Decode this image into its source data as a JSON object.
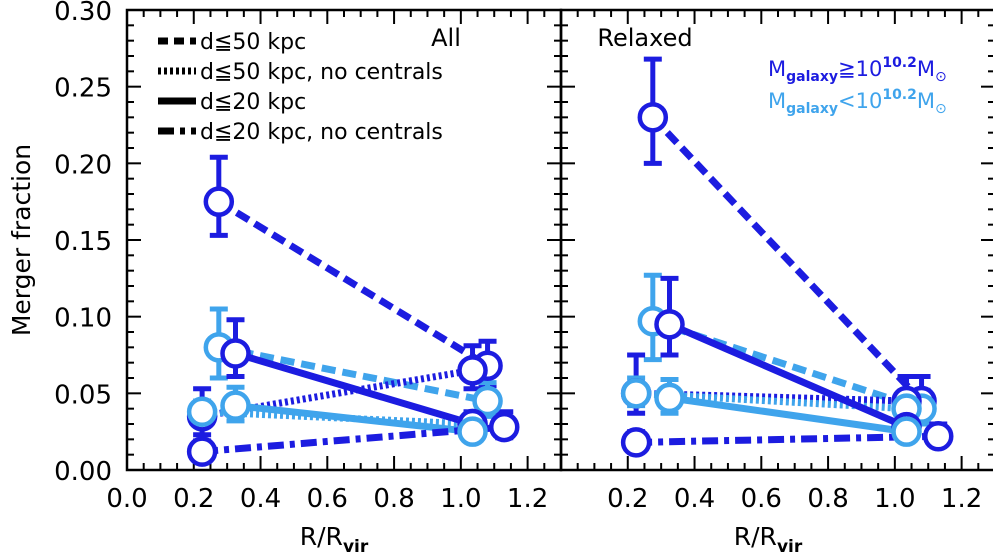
{
  "colors": {
    "dark_blue": "#1c1ce0",
    "light_blue": "#3fa4ec",
    "axis": "#000000"
  },
  "chart_data": {
    "type": "scatter",
    "ylabel": "Merger fraction",
    "yticks": [
      "0.00",
      "0.05",
      "0.10",
      "0.15",
      "0.20",
      "0.25",
      "0.30"
    ],
    "ylim": [
      0,
      0.3
    ],
    "legend": {
      "entries": [
        {
          "label": "d≦50 kpc",
          "style": "dashed"
        },
        {
          "label": "d≦50 kpc, no centrals",
          "style": "dotted"
        },
        {
          "label": "d≦20 kpc",
          "style": "solid"
        },
        {
          "label": "d≦20 kpc, no centrals",
          "style": "dashdot"
        }
      ],
      "mass_high": {
        "main": "M",
        "sub": "galaxy",
        "mid": "≧10",
        "sup": "10.2",
        "end": "M",
        "endsub": "⊙"
      },
      "mass_low": {
        "main": "M",
        "sub": "galaxy",
        "mid": "<10",
        "sup": "10.2",
        "end": "M",
        "endsub": "⊙"
      }
    },
    "panels": [
      {
        "title": "All",
        "xlabel": {
          "main": "R/R",
          "sub": "vir"
        },
        "xticks": [
          "0.0",
          "0.2",
          "0.4",
          "0.6",
          "0.8",
          "1.0",
          "1.2"
        ],
        "xlim": [
          0,
          1.3
        ],
        "series": [
          {
            "style": "dashed",
            "color": "dark_blue",
            "x": [
              0.275,
              1.08
            ],
            "y": [
              0.175,
              0.068
            ],
            "err": [
              [
                0.022,
                0.029
              ],
              [
                0.013,
                0.016
              ]
            ]
          },
          {
            "style": "dashed",
            "color": "light_blue",
            "x": [
              0.275,
              1.08
            ],
            "y": [
              0.08,
              0.045
            ],
            "err": [
              [
                0.02,
                0.025
              ],
              [
                0.01,
                0.012
              ]
            ]
          },
          {
            "style": "dotted",
            "color": "dark_blue",
            "x": [
              0.225,
              1.035
            ],
            "y": [
              0.035,
              0.065
            ],
            "err": [
              [
                0.012,
                0.018
              ],
              [
                0.012,
                0.016
              ]
            ]
          },
          {
            "style": "dotted",
            "color": "light_blue",
            "x": [
              0.225,
              1.035
            ],
            "y": [
              0.038,
              0.03
            ],
            "err": [
              [
                0.006,
                0.007
              ],
              [
                0.005,
                0.006
              ]
            ]
          },
          {
            "style": "solid",
            "color": "dark_blue",
            "x": [
              0.325,
              1.035
            ],
            "y": [
              0.076,
              0.03
            ],
            "err": [
              [
                0.015,
                0.022
              ],
              [
                0.007,
                0.008
              ]
            ]
          },
          {
            "style": "solid",
            "color": "light_blue",
            "x": [
              0.325,
              1.035
            ],
            "y": [
              0.042,
              0.025
            ],
            "err": [
              [
                0.01,
                0.012
              ],
              [
                0.004,
                0.005
              ]
            ]
          },
          {
            "style": "dashdot",
            "color": "dark_blue",
            "x": [
              0.225,
              1.13
            ],
            "y": [
              0.012,
              0.028
            ],
            "err": [
              [
                0.005,
                0.007
              ],
              [
                0.007,
                0.01
              ]
            ]
          }
        ]
      },
      {
        "title": "Relaxed",
        "xlabel": {
          "main": "R/R",
          "sub": "vir"
        },
        "xticks": [
          "0.2",
          "0.4",
          "0.6",
          "0.8",
          "1.0",
          "1.2"
        ],
        "xlim": [
          0,
          1.3
        ],
        "series": [
          {
            "style": "dashed",
            "color": "dark_blue",
            "x": [
              0.275,
              1.08
            ],
            "y": [
              0.23,
              0.045
            ],
            "err": [
              [
                0.03,
                0.038
              ],
              [
                0.012,
                0.016
              ]
            ]
          },
          {
            "style": "dashed",
            "color": "light_blue",
            "x": [
              0.275,
              1.08
            ],
            "y": [
              0.097,
              0.04
            ],
            "err": [
              [
                0.025,
                0.03
              ],
              [
                0.01,
                0.012
              ]
            ]
          },
          {
            "style": "dotted",
            "color": "dark_blue",
            "x": [
              0.225,
              1.035
            ],
            "y": [
              0.05,
              0.045
            ],
            "err": [
              [
                0.013,
                0.025
              ],
              [
                0.011,
                0.016
              ]
            ]
          },
          {
            "style": "dotted",
            "color": "light_blue",
            "x": [
              0.225,
              1.035
            ],
            "y": [
              0.05,
              0.04
            ],
            "err": [
              [
                0.008,
                0.01
              ],
              [
                0.006,
                0.008
              ]
            ]
          },
          {
            "style": "solid",
            "color": "dark_blue",
            "x": [
              0.325,
              1.035
            ],
            "y": [
              0.095,
              0.028
            ],
            "err": [
              [
                0.02,
                0.03
              ],
              [
                0.006,
                0.008
              ]
            ]
          },
          {
            "style": "solid",
            "color": "light_blue",
            "x": [
              0.325,
              1.035
            ],
            "y": [
              0.047,
              0.025
            ],
            "err": [
              [
                0.01,
                0.012
              ],
              [
                0.004,
                0.005
              ]
            ]
          },
          {
            "style": "dashdot",
            "color": "dark_blue",
            "x": [
              0.225,
              1.13
            ],
            "y": [
              0.018,
              0.022
            ],
            "err": [
              [
                0.005,
                0.007
              ],
              [
                0.006,
                0.008
              ]
            ]
          }
        ]
      }
    ]
  }
}
